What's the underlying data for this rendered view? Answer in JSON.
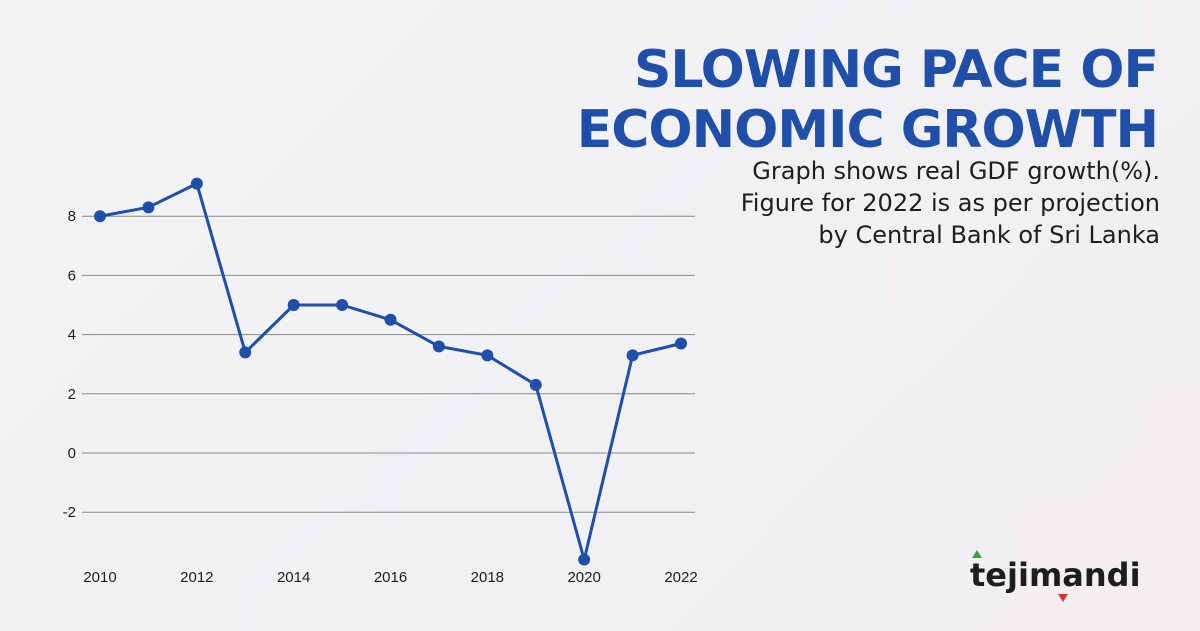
{
  "header": {
    "title_line1": "SLOWING PACE OF",
    "title_line2": "ECONOMIC GROWTH",
    "subtitle_line1": "Graph shows real GDF growth(%).",
    "subtitle_line2": "Figure for 2022 is as per projection",
    "subtitle_line3": "by Central Bank of Sri Lanka"
  },
  "logo": {
    "text": "tejimandi",
    "part1": "teji",
    "part2": "mandi",
    "up_color": "#3aa43a",
    "down_color": "#d9342b"
  },
  "colors": {
    "title": "#1f4fa8",
    "line": "#1f4fa8",
    "marker": "#1f4fa8",
    "grid": "#8a8a8a"
  },
  "chart_data": {
    "type": "line",
    "title": "",
    "xlabel": "",
    "ylabel": "",
    "x": [
      2010,
      2011,
      2012,
      2013,
      2014,
      2015,
      2016,
      2017,
      2018,
      2019,
      2020,
      2021,
      2022
    ],
    "series": [
      {
        "values": [
          8.0,
          8.3,
          9.1,
          3.4,
          5.0,
          5.0,
          4.5,
          3.6,
          3.3,
          2.3,
          -3.6,
          3.3,
          3.7
        ]
      }
    ],
    "xticks": [
      "2010",
      "2012",
      "2014",
      "2016",
      "2018",
      "2020",
      "2022"
    ],
    "yticks": [
      "8",
      "6",
      "4",
      "2",
      "0",
      "-2"
    ],
    "ytick_values": [
      8,
      6,
      4,
      2,
      0,
      -2
    ],
    "grid": true,
    "legend": "none"
  }
}
